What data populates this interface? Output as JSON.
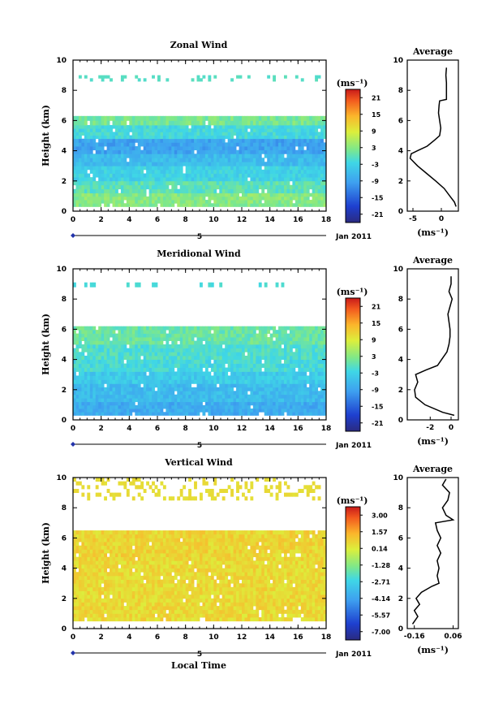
{
  "figure": {
    "xlabel_bottom": "Local Time",
    "date_label": "Jan 2011",
    "day_label": "5"
  },
  "chart_data": [
    {
      "type": "heatmap",
      "title": "Zonal Wind",
      "xlabel": "",
      "ylabel": "Height (km)",
      "xlim": [
        0,
        18
      ],
      "ylim": [
        0,
        10
      ],
      "x_ticks": [
        0,
        2,
        4,
        6,
        8,
        10,
        12,
        14,
        16,
        18
      ],
      "y_ticks": [
        0,
        2,
        4,
        6,
        8,
        10
      ],
      "colorbar": {
        "unit": "(ms⁻¹)",
        "levels": [
          "21",
          "15",
          "9",
          "3",
          "-3",
          "-9",
          "-15",
          "-21"
        ],
        "range": [
          -24,
          24
        ]
      },
      "bands": [
        {
          "y0": 0.3,
          "y1": 1.2,
          "value": 3
        },
        {
          "y0": 1.2,
          "y1": 2.0,
          "value": 0
        },
        {
          "y0": 2.0,
          "y1": 3.0,
          "value": -3
        },
        {
          "y0": 3.0,
          "y1": 3.8,
          "value": -6
        },
        {
          "y0": 3.8,
          "y1": 4.8,
          "value": -9
        },
        {
          "y0": 4.8,
          "y1": 5.7,
          "value": -2
        },
        {
          "y0": 5.7,
          "y1": 6.3,
          "value": 2
        },
        {
          "y0": 8.6,
          "y1": 9.0,
          "value": 1
        }
      ],
      "average": {
        "title": "Average",
        "xlabel": "(ms⁻¹)",
        "xlim": [
          -6,
          3
        ],
        "x_ticks": [
          -5,
          0
        ],
        "x_tick_labels": [
          "-5",
          "0"
        ],
        "height": [
          0.3,
          0.6,
          1.0,
          1.5,
          2.0,
          2.5,
          3.0,
          3.5,
          3.8,
          4.0,
          4.3,
          4.7,
          5.0,
          5.5,
          6.0,
          6.5,
          7.0,
          7.3,
          7.4,
          7.8,
          8.5,
          9.0,
          9.5
        ],
        "value": [
          2.6,
          2.3,
          1.5,
          0.5,
          -1.0,
          -2.6,
          -4.2,
          -5.5,
          -5.3,
          -4.2,
          -2.5,
          -1.2,
          -0.3,
          -0.1,
          -0.3,
          -0.5,
          -0.4,
          -0.3,
          0.9,
          0.9,
          0.9,
          0.8,
          0.9
        ]
      }
    },
    {
      "type": "heatmap",
      "title": "Meridional Wind",
      "xlabel": "",
      "ylabel": "Height (km)",
      "xlim": [
        0,
        18
      ],
      "ylim": [
        0,
        10
      ],
      "x_ticks": [
        0,
        2,
        4,
        6,
        8,
        10,
        12,
        14,
        16,
        18
      ],
      "y_ticks": [
        0,
        2,
        4,
        6,
        8,
        10
      ],
      "colorbar": {
        "unit": "(ms⁻¹)",
        "levels": [
          "21",
          "15",
          "9",
          "3",
          "-3",
          "-9",
          "-15",
          "-21"
        ],
        "range": [
          -24,
          24
        ]
      },
      "bands": [
        {
          "y0": 0.3,
          "y1": 1.2,
          "value": -8
        },
        {
          "y0": 1.2,
          "y1": 2.4,
          "value": -6
        },
        {
          "y0": 2.4,
          "y1": 3.2,
          "value": -4
        },
        {
          "y0": 3.2,
          "y1": 4.0,
          "value": -2
        },
        {
          "y0": 4.0,
          "y1": 5.0,
          "value": -1
        },
        {
          "y0": 5.0,
          "y1": 6.2,
          "value": 1
        },
        {
          "y0": 8.8,
          "y1": 9.1,
          "value": 0
        }
      ],
      "average": {
        "title": "Average",
        "xlabel": "(ms⁻¹)",
        "xlim": [
          -4.2,
          0.7
        ],
        "x_ticks": [
          -2,
          0
        ],
        "x_tick_labels": [
          "-2",
          "0"
        ],
        "height": [
          0.3,
          0.5,
          1.0,
          1.5,
          2.0,
          2.5,
          3.0,
          3.3,
          3.6,
          4.0,
          4.5,
          5.0,
          5.5,
          6.0,
          6.5,
          7.0,
          7.5,
          8.0,
          8.5,
          9.0,
          9.5
        ],
        "value": [
          0.3,
          -0.8,
          -2.5,
          -3.4,
          -3.5,
          -3.2,
          -3.4,
          -2.4,
          -1.3,
          -0.9,
          -0.4,
          -0.2,
          -0.1,
          -0.1,
          -0.2,
          -0.3,
          -0.1,
          0.1,
          -0.2,
          0.0,
          0.0
        ]
      }
    },
    {
      "type": "heatmap",
      "title": "Vertical Wind",
      "xlabel": "Local Time",
      "ylabel": "Height (km)",
      "xlim": [
        0,
        18
      ],
      "ylim": [
        0,
        10
      ],
      "x_ticks": [
        0,
        2,
        4,
        6,
        8,
        10,
        12,
        14,
        16,
        18
      ],
      "y_ticks": [
        0,
        2,
        4,
        6,
        8,
        10
      ],
      "colorbar": {
        "unit": "(ms⁻¹)",
        "levels": [
          "3.00",
          "1.57",
          "0.14",
          "-1.28",
          "-2.71",
          "-4.14",
          "-5.57",
          "-7.00"
        ],
        "range": [
          -7.71,
          3.71
        ]
      },
      "bands": [
        {
          "y0": 0.5,
          "y1": 4.5,
          "value": 0.6
        },
        {
          "y0": 4.5,
          "y1": 6.5,
          "value": 0.7
        },
        {
          "y0": 8.5,
          "y1": 10.0,
          "value": 0.9
        }
      ],
      "average": {
        "title": "Average",
        "xlabel": "(ms⁻¹)",
        "xlim": [
          -0.2,
          0.09
        ],
        "x_ticks": [
          -0.16,
          0.06
        ],
        "x_tick_labels": [
          "-0.16",
          "0.06"
        ],
        "height": [
          0.3,
          0.8,
          1.2,
          1.6,
          2.0,
          2.4,
          2.8,
          3.0,
          3.5,
          4.0,
          4.5,
          5.0,
          5.5,
          6.0,
          6.5,
          7.0,
          7.2,
          7.5,
          8.0,
          8.5,
          9.0,
          9.5,
          9.9
        ],
        "value": [
          -0.17,
          -0.14,
          -0.16,
          -0.13,
          -0.15,
          -0.12,
          -0.06,
          -0.02,
          -0.03,
          -0.02,
          -0.03,
          -0.01,
          -0.03,
          -0.01,
          -0.03,
          -0.04,
          0.06,
          0.02,
          0.0,
          0.03,
          0.04,
          0.0,
          0.02
        ]
      }
    }
  ]
}
